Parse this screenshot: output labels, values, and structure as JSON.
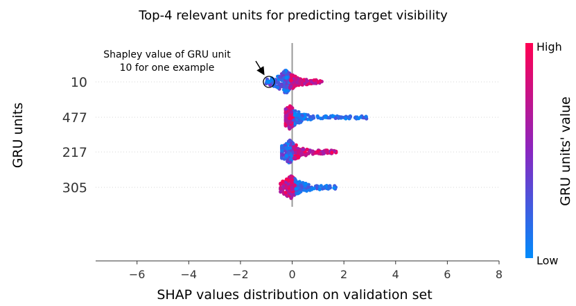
{
  "chart_data": {
    "type": "scatter",
    "subtype": "shap-beeswarm",
    "title": "Top-4  relevant units for predicting target visibility",
    "xlabel": "SHAP values distribution on validation set",
    "ylabel": "GRU units",
    "xlim": [
      -7.6,
      8
    ],
    "xticks": [
      -6,
      -4,
      -2,
      0,
      2,
      4,
      6,
      8
    ],
    "xtick_labels": [
      "−6",
      "−4",
      "−2",
      "0",
      "2",
      "4",
      "6",
      "8"
    ],
    "zero_line": 0,
    "features": [
      {
        "label": "10",
        "min": -1.0,
        "max": 1.15,
        "peak": -0.25,
        "low_side": "negative",
        "high_side": "positive"
      },
      {
        "label": "477",
        "min": -0.25,
        "max": 2.9,
        "peak": -0.1,
        "low_side": "positive",
        "high_side": "negative"
      },
      {
        "label": "217",
        "min": -0.4,
        "max": 1.75,
        "peak": -0.1,
        "low_side": "negative",
        "high_side": "positive"
      },
      {
        "label": "305",
        "min": -0.45,
        "max": 1.75,
        "peak": -0.05,
        "low_side": "positive",
        "high_side": "negative"
      }
    ],
    "colorbar": {
      "title": "GRU units' value",
      "high_label": "High",
      "low_label": "Low",
      "low_color": "#008bfb",
      "high_color": "#ff0052"
    },
    "annotation": {
      "line1": "Shapley value of GRU unit",
      "line2": "10 for one example",
      "feature": "10",
      "x": -0.9
    }
  }
}
